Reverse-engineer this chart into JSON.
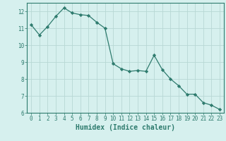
{
  "x": [
    0,
    1,
    2,
    3,
    4,
    5,
    6,
    7,
    8,
    9,
    10,
    11,
    12,
    13,
    14,
    15,
    16,
    17,
    18,
    19,
    20,
    21,
    22,
    23
  ],
  "y": [
    11.2,
    10.6,
    11.1,
    11.7,
    12.2,
    11.9,
    11.8,
    11.75,
    11.35,
    11.0,
    8.9,
    8.6,
    8.45,
    8.5,
    8.45,
    9.4,
    8.55,
    8.0,
    7.6,
    7.1,
    7.1,
    6.6,
    6.45,
    6.2
  ],
  "line_color": "#2e7b6e",
  "marker": "D",
  "marker_size": 2.2,
  "bg_color": "#d6f0ee",
  "grid_color": "#b8d8d4",
  "xlabel": "Humidex (Indice chaleur)",
  "xlim": [
    -0.5,
    23.5
  ],
  "ylim": [
    6.0,
    12.5
  ],
  "yticks": [
    6,
    7,
    8,
    9,
    10,
    11,
    12
  ],
  "xticks": [
    0,
    1,
    2,
    3,
    4,
    5,
    6,
    7,
    8,
    9,
    10,
    11,
    12,
    13,
    14,
    15,
    16,
    17,
    18,
    19,
    20,
    21,
    22,
    23
  ],
  "tick_color": "#2e7b6e",
  "label_color": "#2e7b6e",
  "font_size": 5.5,
  "xlabel_fontsize": 7.0,
  "linewidth": 0.9
}
